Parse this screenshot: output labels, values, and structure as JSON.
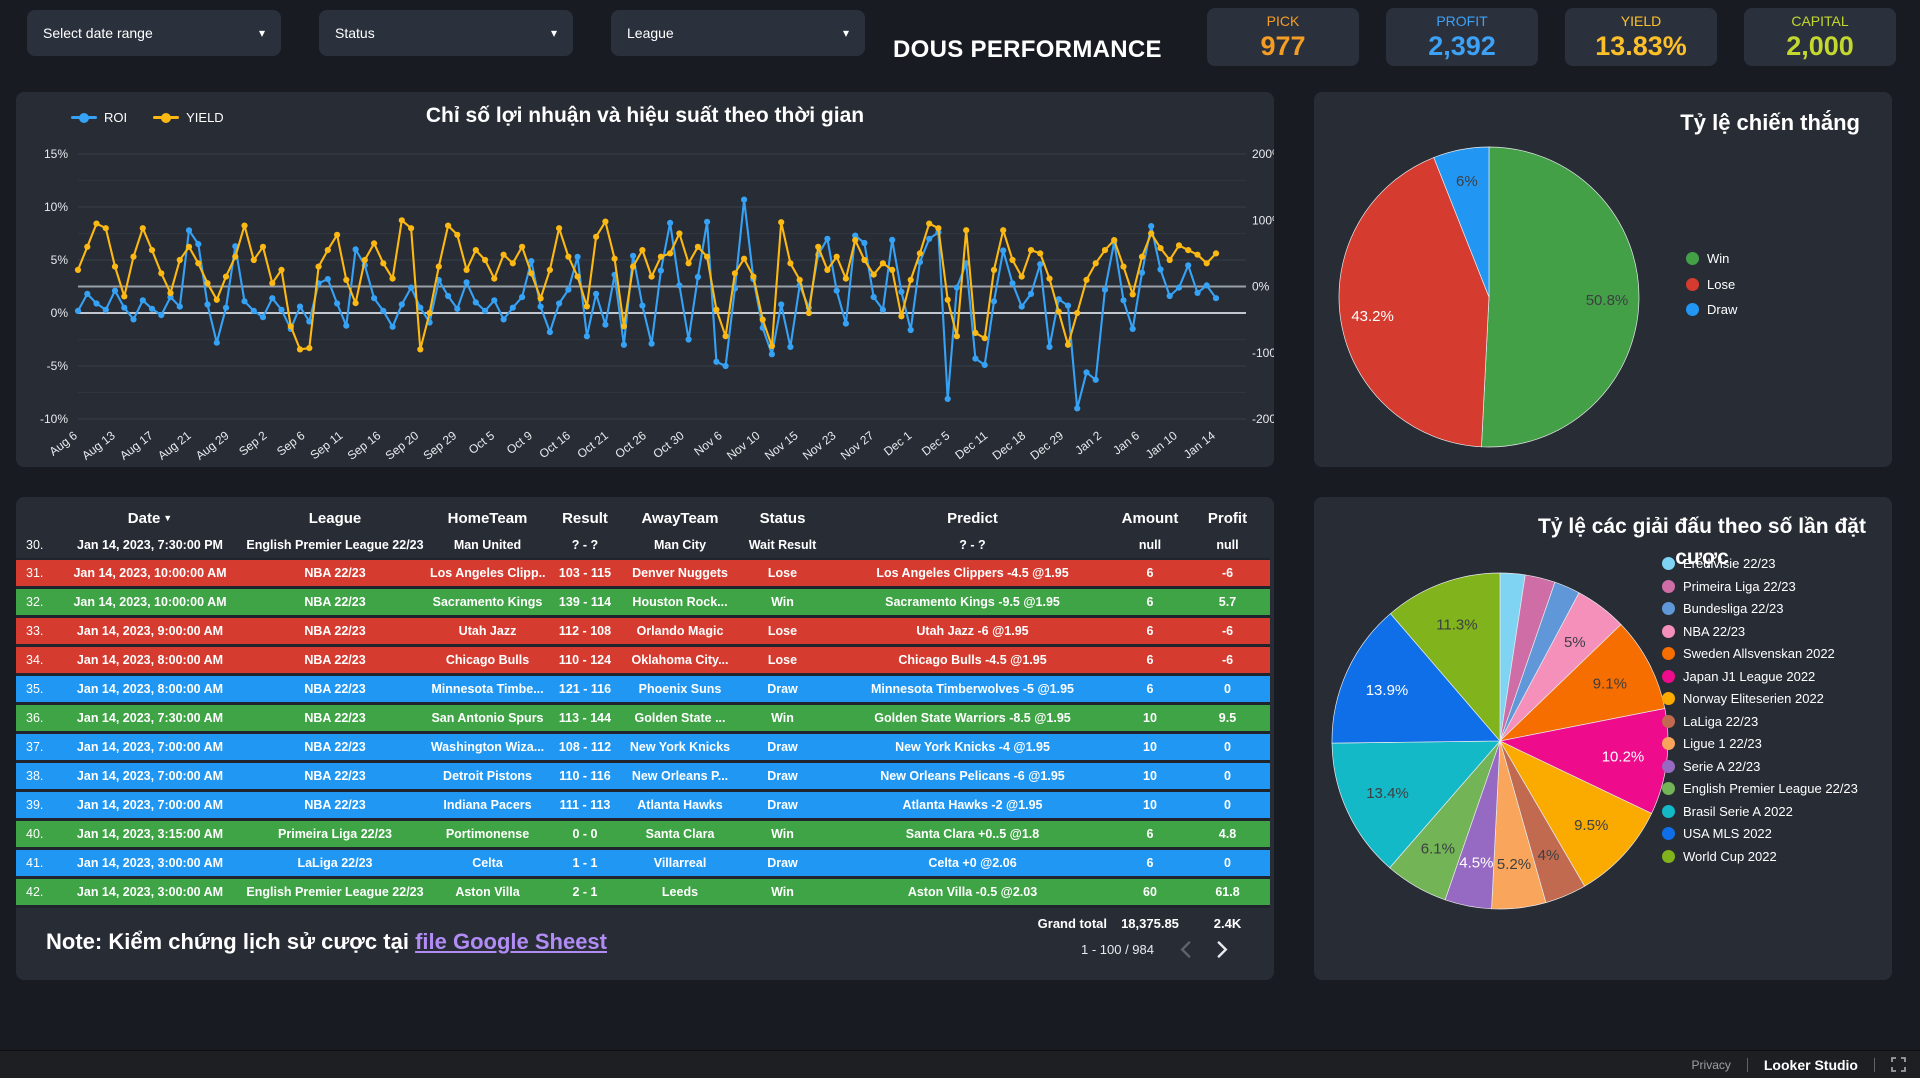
{
  "topbar": {
    "title": "DOUS PERFORMANCE",
    "filters": [
      {
        "label": "Select date range"
      },
      {
        "label": "Status"
      },
      {
        "label": "League"
      }
    ],
    "kpis": [
      {
        "label": "PICK",
        "value": "977",
        "color": "#f49d25"
      },
      {
        "label": "PROFIT",
        "value": "2,392",
        "color": "#3da1f5"
      },
      {
        "label": "YIELD",
        "value": "13.83%",
        "color": "#fdc029"
      },
      {
        "label": "CAPITAL",
        "value": "2,000",
        "color": "#c3d82e"
      }
    ]
  },
  "chart_data": [
    {
      "id": "performance-timeline",
      "type": "line",
      "title": "Chỉ số lợi nhuận và hiệu suất theo thời gian",
      "legend_position": "top-left",
      "grid": true,
      "x_tick_labels": [
        "Aug 6",
        "Aug 13",
        "Aug 17",
        "Aug 21",
        "Aug 29",
        "Sep 2",
        "Sep 6",
        "Sep 11",
        "Sep 16",
        "Sep 20",
        "Sep 29",
        "Oct 5",
        "Oct 9",
        "Oct 16",
        "Oct 21",
        "Oct 26",
        "Oct 30",
        "Nov 6",
        "Nov 10",
        "Nov 15",
        "Nov 23",
        "Nov 27",
        "Dec 1",
        "Dec 5",
        "Dec 11",
        "Dec 18",
        "Dec 29",
        "Jan 2",
        "Jan 6",
        "Jan 10",
        "Jan 14"
      ],
      "left_axis": {
        "ticks": [
          "15%",
          "10%",
          "5%",
          "0%",
          "-5%",
          "-10%"
        ],
        "min": -10,
        "max": 15
      },
      "right_axis": {
        "ticks": [
          "200%",
          "100%",
          "0%",
          "-100%",
          "-200%"
        ],
        "min": -200,
        "max": 200
      },
      "series": [
        {
          "name": "ROI",
          "axis": "left",
          "unit": "%",
          "color": "#36a2f5",
          "values": [
            0.2,
            1.8,
            0.9,
            0.3,
            2.1,
            0.5,
            -0.6,
            1.2,
            0.4,
            -0.2,
            1.5,
            0.6,
            7.8,
            6.5,
            0.8,
            -2.8,
            0.5,
            6.3,
            1.1,
            0.2,
            -0.4,
            1.4,
            0.3,
            -1.5,
            0.6,
            -0.8,
            2.8,
            3.2,
            0.9,
            -1.2,
            6.0,
            4.5,
            1.4,
            0.2,
            -1.3,
            0.8,
            2.4,
            0.5,
            -0.9,
            3.1,
            1.6,
            0.4,
            2.9,
            1.0,
            0.2,
            1.2,
            -0.6,
            0.5,
            1.5,
            4.9,
            0.6,
            -1.8,
            0.9,
            2.2,
            5.3,
            -2.2,
            1.8,
            -1.1,
            3.6,
            -3.0,
            5.4,
            0.7,
            -2.9,
            4.0,
            8.5,
            2.6,
            -2.5,
            3.4,
            8.6,
            -4.6,
            -5.0,
            2.3,
            10.7,
            3.2,
            -1.4,
            -3.9,
            0.8,
            -3.2,
            2.6,
            0.5,
            5.5,
            7.0,
            2.1,
            -1.0,
            7.3,
            6.6,
            1.5,
            0.3,
            6.9,
            2.0,
            -1.6,
            4.8,
            7.0,
            7.6,
            -8.1,
            2.4,
            4.7,
            -4.3,
            -4.9,
            1.1,
            5.9,
            2.8,
            0.6,
            1.8,
            4.6,
            -3.2,
            1.3,
            0.7,
            -9.0,
            -5.6,
            -6.3,
            2.2,
            6.7,
            1.2,
            -1.5,
            3.8,
            8.2,
            4.1,
            1.6,
            2.4,
            4.5,
            1.9,
            2.6,
            1.4
          ]
        },
        {
          "name": "YIELD",
          "axis": "right",
          "unit": "%",
          "color": "#fdb913",
          "values": [
            25,
            60,
            95,
            88,
            30,
            -15,
            45,
            88,
            55,
            20,
            -10,
            40,
            60,
            35,
            5,
            -20,
            15,
            45,
            92,
            40,
            60,
            5,
            25,
            -60,
            -95,
            -93,
            30,
            55,
            78,
            10,
            -25,
            40,
            65,
            35,
            12,
            100,
            88,
            -95,
            -40,
            30,
            92,
            78,
            25,
            55,
            40,
            12,
            48,
            35,
            60,
            20,
            -18,
            25,
            88,
            45,
            15,
            -30,
            75,
            98,
            42,
            -60,
            30,
            55,
            15,
            45,
            50,
            80,
            35,
            60,
            45,
            -35,
            -75,
            20,
            42,
            15,
            -50,
            -90,
            97,
            35,
            10,
            -40,
            60,
            25,
            45,
            12,
            70,
            40,
            18,
            35,
            25,
            -45,
            10,
            50,
            95,
            88,
            -20,
            -75,
            85,
            -70,
            -78,
            25,
            85,
            40,
            15,
            55,
            50,
            12,
            -38,
            -88,
            -40,
            10,
            35,
            55,
            70,
            30,
            -12,
            45,
            80,
            58,
            40,
            62,
            55,
            48,
            35,
            50
          ]
        }
      ]
    },
    {
      "id": "win-rate",
      "type": "pie",
      "title": "Tỷ lệ chiến thắng",
      "legend_position": "right",
      "slices": [
        {
          "label": "Win",
          "value": 50.8,
          "color": "#43a047",
          "data_label": "50.8%",
          "data_label_color": "#3c4043"
        },
        {
          "label": "Lose",
          "value": 43.2,
          "color": "#d63b30",
          "data_label": "43.2%",
          "data_label_color": "#ffffff"
        },
        {
          "label": "Draw",
          "value": 6.0,
          "color": "#2196f3",
          "data_label": "6%",
          "data_label_color": "#3c4043"
        }
      ]
    },
    {
      "id": "league-share",
      "type": "pie",
      "title": "Tỷ lệ các giải đấu theo số lần đặt cược",
      "legend_position": "right",
      "slices": [
        {
          "label": "Eredivisie 22/23",
          "value": 2.4,
          "color": "#7fd4f4",
          "data_label": "",
          "data_label_color": "#3c4043"
        },
        {
          "label": "Primeira Liga 22/23",
          "value": 2.9,
          "color": "#ce6da6",
          "data_label": "",
          "data_label_color": "#3c4043"
        },
        {
          "label": "Bundesliga 22/23",
          "value": 2.5,
          "color": "#5f97d8",
          "data_label": "",
          "data_label_color": "#3c4043"
        },
        {
          "label": "NBA 22/23",
          "value": 5.0,
          "color": "#f590ba",
          "data_label": "5%",
          "data_label_color": "#3c4043"
        },
        {
          "label": "Sweden Allsvenskan 2022",
          "value": 9.1,
          "color": "#f66d00",
          "data_label": "9.1%",
          "data_label_color": "#3c4043"
        },
        {
          "label": "Japan J1 League 2022",
          "value": 10.2,
          "color": "#ee0b8c",
          "data_label": "10.2%",
          "data_label_color": "#ffffff"
        },
        {
          "label": "Norway Eliteserien 2022",
          "value": 9.5,
          "color": "#fbab00",
          "data_label": "9.5%",
          "data_label_color": "#3c4043"
        },
        {
          "label": "LaLiga 22/23",
          "value": 4.0,
          "color": "#c16a4f",
          "data_label": "4%",
          "data_label_color": "#3c4043"
        },
        {
          "label": "Ligue 1 22/23",
          "value": 5.2,
          "color": "#f9a55c",
          "data_label": "5.2%",
          "data_label_color": "#3c4043"
        },
        {
          "label": "Serie A 22/23",
          "value": 4.5,
          "color": "#9669c2",
          "data_label": "4.5%",
          "data_label_color": "#ffffff"
        },
        {
          "label": "English Premier League 22/23",
          "value": 6.1,
          "color": "#73b457",
          "data_label": "6.1%",
          "data_label_color": "#3c4043"
        },
        {
          "label": "Brasil Serie A 2022",
          "value": 13.4,
          "color": "#13b9c6",
          "data_label": "13.4%",
          "data_label_color": "#3c4043"
        },
        {
          "label": "USA MLS 2022",
          "value": 13.9,
          "color": "#0e6fe8",
          "data_label": "13.9%",
          "data_label_color": "#ffffff"
        },
        {
          "label": "World Cup 2022",
          "value": 11.3,
          "color": "#80b31c",
          "data_label": "11.3%",
          "data_label_color": "#3c4043"
        }
      ]
    }
  ],
  "table": {
    "columns": [
      "Date",
      "League",
      "HomeTeam",
      "Result",
      "AwayTeam",
      "Status",
      "Predict",
      "Amount",
      "Profit"
    ],
    "status_colors": {
      "win": "#3fa445",
      "lose": "#d63b30",
      "draw": "#2097f3"
    },
    "rows": [
      {
        "num": "30.",
        "date": "Jan 14, 2023, 7:30:00 PM",
        "league": "English Premier League 22/23",
        "home": "Man United",
        "result": "? - ?",
        "away": "Man City",
        "status": "Wait Result",
        "predict": "? - ?",
        "amount": "null",
        "profit": "null",
        "type": "wait"
      },
      {
        "num": "31.",
        "date": "Jan 14, 2023, 10:00:00 AM",
        "league": "NBA 22/23",
        "home": "Los Angeles Clipp...",
        "result": "103 - 115",
        "away": "Denver Nuggets",
        "status": "Lose",
        "predict": "Los Angeles Clippers -4.5 @1.95",
        "amount": "6",
        "profit": "-6",
        "type": "lose"
      },
      {
        "num": "32.",
        "date": "Jan 14, 2023, 10:00:00 AM",
        "league": "NBA 22/23",
        "home": "Sacramento Kings",
        "result": "139 - 114",
        "away": "Houston Rock...",
        "status": "Win",
        "predict": "Sacramento Kings -9.5 @1.95",
        "amount": "6",
        "profit": "5.7",
        "type": "win"
      },
      {
        "num": "33.",
        "date": "Jan 14, 2023, 9:00:00 AM",
        "league": "NBA 22/23",
        "home": "Utah Jazz",
        "result": "112 - 108",
        "away": "Orlando Magic",
        "status": "Lose",
        "predict": "Utah Jazz -6 @1.95",
        "amount": "6",
        "profit": "-6",
        "type": "lose"
      },
      {
        "num": "34.",
        "date": "Jan 14, 2023, 8:00:00 AM",
        "league": "NBA 22/23",
        "home": "Chicago Bulls",
        "result": "110 - 124",
        "away": "Oklahoma City...",
        "status": "Lose",
        "predict": "Chicago Bulls -4.5 @1.95",
        "amount": "6",
        "profit": "-6",
        "type": "lose"
      },
      {
        "num": "35.",
        "date": "Jan 14, 2023, 8:00:00 AM",
        "league": "NBA 22/23",
        "home": "Minnesota Timbe...",
        "result": "121 - 116",
        "away": "Phoenix Suns",
        "status": "Draw",
        "predict": "Minnesota Timberwolves -5 @1.95",
        "amount": "6",
        "profit": "0",
        "type": "draw"
      },
      {
        "num": "36.",
        "date": "Jan 14, 2023, 7:30:00 AM",
        "league": "NBA 22/23",
        "home": "San Antonio Spurs",
        "result": "113 - 144",
        "away": "Golden State ...",
        "status": "Win",
        "predict": "Golden State Warriors -8.5 @1.95",
        "amount": "10",
        "profit": "9.5",
        "type": "win"
      },
      {
        "num": "37.",
        "date": "Jan 14, 2023, 7:00:00 AM",
        "league": "NBA 22/23",
        "home": "Washington Wiza...",
        "result": "108 - 112",
        "away": "New York Knicks",
        "status": "Draw",
        "predict": "New York Knicks -4 @1.95",
        "amount": "10",
        "profit": "0",
        "type": "draw"
      },
      {
        "num": "38.",
        "date": "Jan 14, 2023, 7:00:00 AM",
        "league": "NBA 22/23",
        "home": "Detroit Pistons",
        "result": "110 - 116",
        "away": "New Orleans P...",
        "status": "Draw",
        "predict": "New Orleans Pelicans -6 @1.95",
        "amount": "10",
        "profit": "0",
        "type": "draw"
      },
      {
        "num": "39.",
        "date": "Jan 14, 2023, 7:00:00 AM",
        "league": "NBA 22/23",
        "home": "Indiana Pacers",
        "result": "111 - 113",
        "away": "Atlanta Hawks",
        "status": "Draw",
        "predict": "Atlanta Hawks -2 @1.95",
        "amount": "10",
        "profit": "0",
        "type": "draw"
      },
      {
        "num": "40.",
        "date": "Jan 14, 2023, 3:15:00 AM",
        "league": "Primeira Liga 22/23",
        "home": "Portimonense",
        "result": "0 - 0",
        "away": "Santa Clara",
        "status": "Win",
        "predict": "Santa Clara +0..5 @1.8",
        "amount": "6",
        "profit": "4.8",
        "type": "win"
      },
      {
        "num": "41.",
        "date": "Jan 14, 2023, 3:00:00 AM",
        "league": "LaLiga 22/23",
        "home": "Celta",
        "result": "1 - 1",
        "away": "Villarreal",
        "status": "Draw",
        "predict": "Celta +0 @2.06",
        "amount": "6",
        "profit": "0",
        "type": "draw"
      },
      {
        "num": "42.",
        "date": "Jan 14, 2023, 3:00:00 AM",
        "league": "English Premier League 22/23",
        "home": "Aston Villa",
        "result": "2 - 1",
        "away": "Leeds",
        "status": "Win",
        "predict": "Aston Villa -0.5 @2.03",
        "amount": "60",
        "profit": "61.8",
        "type": "win"
      }
    ],
    "grand_total": {
      "label": "Grand total",
      "amount": "18,375.85",
      "profit": "2.4K"
    },
    "pagination": {
      "range": "1 - 100 / 984",
      "prev_enabled": false,
      "next_enabled": true
    }
  },
  "note": {
    "prefix": "Note: Kiểm chứng lịch sử cược tại ",
    "link_text": "file Google Sheest"
  },
  "footer": {
    "privacy": "Privacy",
    "brand": "Looker Studio"
  }
}
